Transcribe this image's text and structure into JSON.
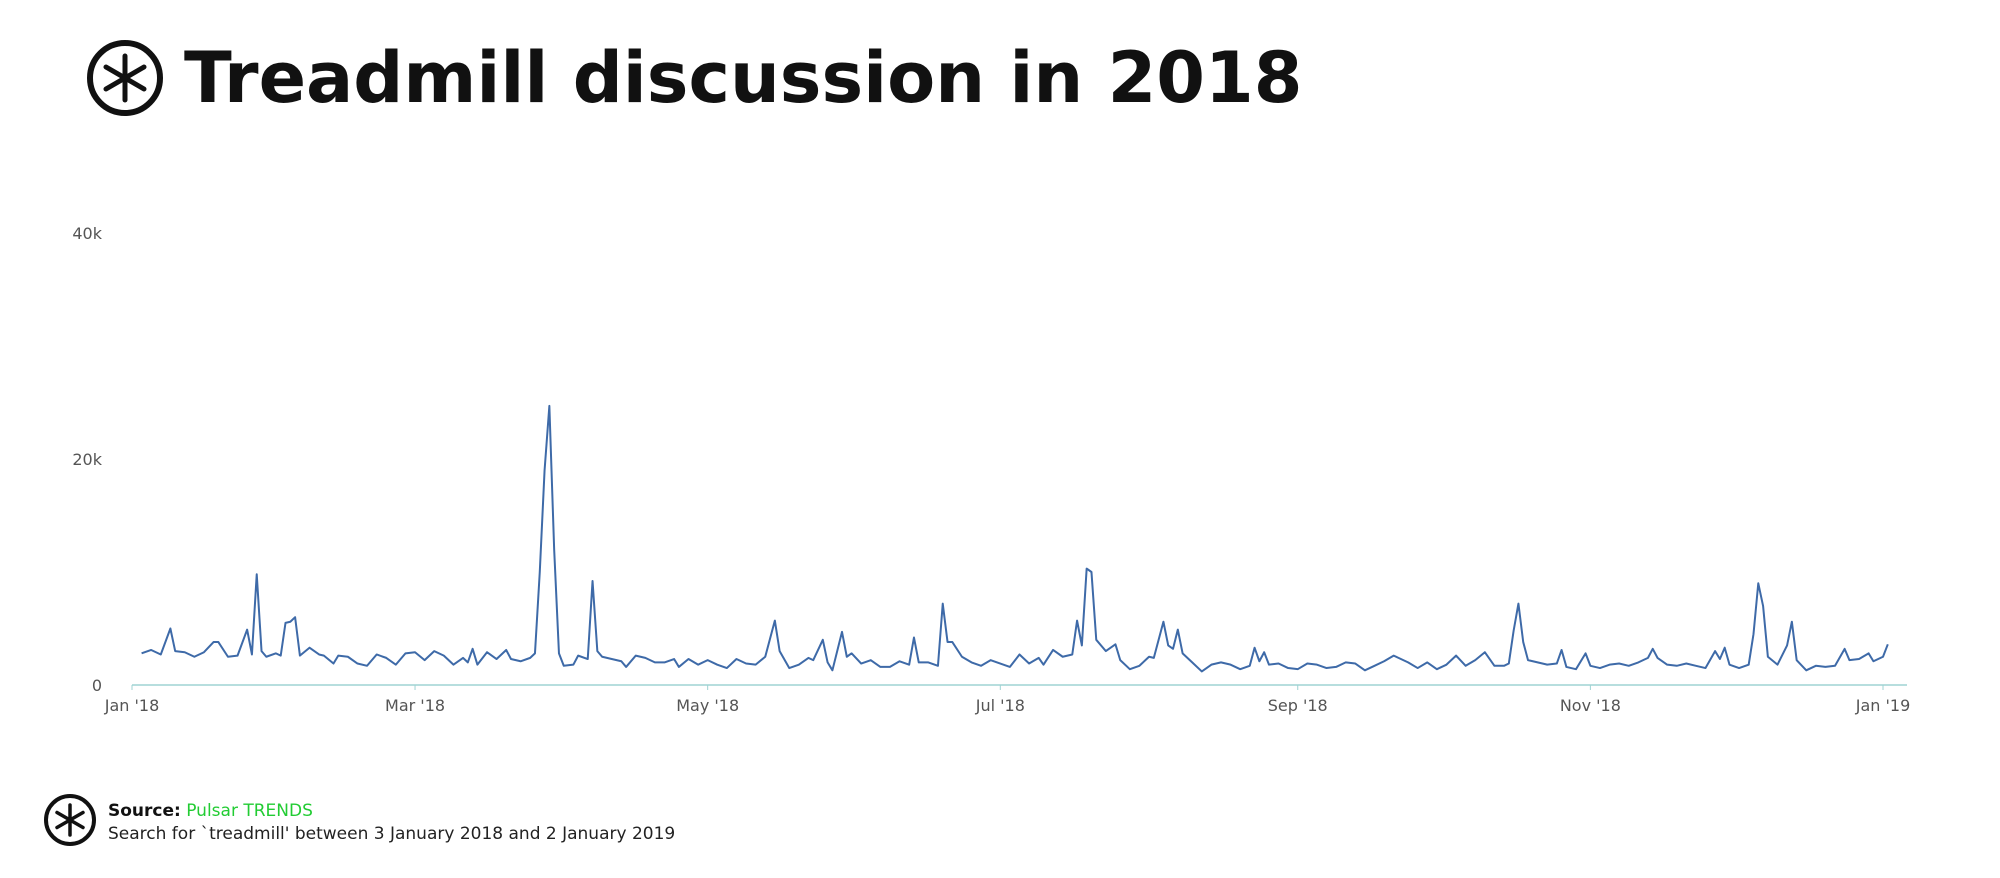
{
  "chart_data": {
    "type": "line",
    "title": "Treadmill discussion in 2018",
    "color": "#3e6aa8",
    "axis_color": "#9fd3d3",
    "xlim": [
      0,
      370
    ],
    "xticks": [
      {
        "value": 0,
        "label": "Jan '18"
      },
      {
        "value": 59,
        "label": "Mar '18"
      },
      {
        "value": 120,
        "label": "May '18"
      },
      {
        "value": 181,
        "label": "Jul '18"
      },
      {
        "value": 243,
        "label": "Sep '18"
      },
      {
        "value": 304,
        "label": "Nov '18"
      },
      {
        "value": 365,
        "label": "Jan '19"
      }
    ],
    "ylim": [
      0,
      40000
    ],
    "yticks": [
      {
        "value": 0,
        "label": "0"
      },
      {
        "value": 20000,
        "label": "20k"
      },
      {
        "value": 40000,
        "label": "40k"
      }
    ],
    "x": [
      2,
      4,
      6,
      8,
      9,
      11,
      13,
      15,
      17,
      18,
      20,
      22,
      24,
      25,
      26,
      27,
      28,
      30,
      31,
      32,
      33,
      34,
      35,
      37,
      39,
      40,
      42,
      43,
      45,
      47,
      49,
      51,
      53,
      55,
      57,
      59,
      61,
      63,
      65,
      67,
      69,
      70,
      71,
      72,
      74,
      76,
      78,
      79,
      81,
      83,
      84,
      85,
      86,
      87,
      88,
      89,
      90,
      92,
      93,
      95,
      96,
      97,
      98,
      100,
      102,
      103,
      105,
      107,
      109,
      111,
      113,
      114,
      116,
      118,
      120,
      122,
      124,
      126,
      128,
      130,
      132,
      134,
      135,
      137,
      139,
      141,
      142,
      144,
      145,
      146,
      148,
      149,
      150,
      152,
      154,
      156,
      158,
      160,
      162,
      163,
      164,
      166,
      168,
      169,
      170,
      171,
      173,
      175,
      177,
      179,
      181,
      183,
      185,
      187,
      189,
      190,
      192,
      194,
      196,
      197,
      198,
      199,
      200,
      201,
      203,
      205,
      206,
      208,
      210,
      212,
      213,
      215,
      216,
      217,
      218,
      219,
      221,
      223,
      225,
      227,
      229,
      231,
      233,
      234,
      235,
      236,
      237,
      239,
      241,
      243,
      245,
      247,
      249,
      251,
      253,
      255,
      257,
      259,
      261,
      263,
      264,
      266,
      268,
      270,
      272,
      274,
      276,
      278,
      280,
      282,
      284,
      286,
      287,
      288,
      289,
      290,
      291,
      293,
      295,
      297,
      298,
      299,
      301,
      303,
      304,
      306,
      308,
      310,
      312,
      314,
      316,
      317,
      318,
      320,
      322,
      324,
      326,
      328,
      330,
      331,
      332,
      333,
      335,
      337,
      338,
      339,
      340,
      341,
      343,
      345,
      346,
      347,
      349,
      351,
      353,
      355,
      357,
      358,
      360,
      362,
      363,
      365,
      366
    ],
    "values": [
      2800,
      3100,
      2700,
      5000,
      3000,
      2900,
      2500,
      2900,
      3800,
      3800,
      2500,
      2600,
      4900,
      2700,
      9800,
      3000,
      2500,
      2800,
      2600,
      5500,
      5600,
      6000,
      2600,
      3300,
      2700,
      2600,
      1900,
      2600,
      2500,
      1900,
      1700,
      2700,
      2400,
      1800,
      2800,
      2900,
      2200,
      3000,
      2600,
      1800,
      2400,
      2000,
      3200,
      1800,
      2900,
      2300,
      3100,
      2300,
      2100,
      2400,
      2800,
      10000,
      19000,
      24700,
      12000,
      2800,
      1700,
      1800,
      2600,
      2300,
      9200,
      3000,
      2500,
      2300,
      2100,
      1600,
      2600,
      2400,
      2000,
      2000,
      2300,
      1600,
      2300,
      1800,
      2200,
      1800,
      1500,
      2300,
      1900,
      1800,
      2500,
      5700,
      3000,
      1500,
      1800,
      2400,
      2200,
      4000,
      2000,
      1300,
      4700,
      2500,
      2800,
      1900,
      2200,
      1600,
      1600,
      2100,
      1800,
      4200,
      2000,
      2000,
      1700,
      7200,
      3800,
      3800,
      2500,
      2000,
      1700,
      2200,
      1900,
      1600,
      2700,
      1900,
      2400,
      1800,
      3100,
      2500,
      2700,
      5700,
      3500,
      10300,
      10000,
      4000,
      3000,
      3600,
      2200,
      1400,
      1700,
      2500,
      2400,
      5600,
      3500,
      3200,
      4900,
      2800,
      2000,
      1200,
      1800,
      2000,
      1800,
      1400,
      1700,
      3300,
      2100,
      2900,
      1800,
      1900,
      1500,
      1400,
      1900,
      1800,
      1500,
      1600,
      2000,
      1900,
      1300,
      1700,
      2100,
      2600,
      2400,
      2000,
      1500,
      2000,
      1400,
      1800,
      2600,
      1700,
      2200,
      2900,
      1700,
      1700,
      1900,
      4800,
      7200,
      3800,
      2200,
      2000,
      1800,
      1900,
      3100,
      1600,
      1400,
      2800,
      1700,
      1500,
      1800,
      1900,
      1700,
      2000,
      2400,
      3200,
      2400,
      1800,
      1700,
      1900,
      1700,
      1500,
      3000,
      2300,
      3300,
      1800,
      1500,
      1800,
      4500,
      9000,
      7000,
      2500,
      1800,
      3500,
      5600,
      2200,
      1300,
      1700,
      1600,
      1700,
      3200,
      2200,
      2300,
      2800,
      2100,
      2500,
      3600
    ]
  },
  "footer": {
    "source_label": "Source:",
    "source_name": "Pulsar TRENDS",
    "description": "Search for `treadmill' between 3 January 2018 and 2 January 2019"
  }
}
